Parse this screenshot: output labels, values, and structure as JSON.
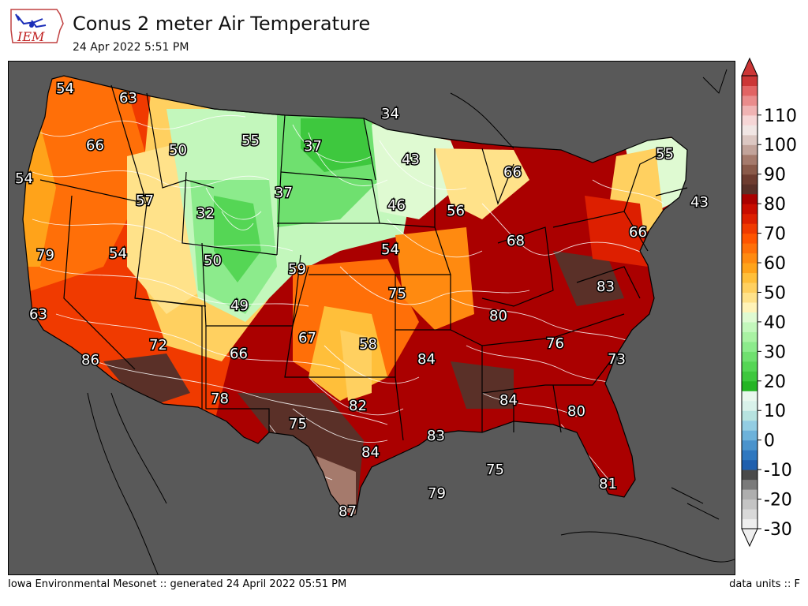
{
  "header": {
    "logo_text": "IEM",
    "title": "Conus 2 meter Air Temperature",
    "subtitle": "24 Apr 2022 5:51 PM"
  },
  "footer": {
    "left": "Iowa Environmental Mesonet :: generated 24 April 2022 05:51 PM",
    "right": "data units :: F"
  },
  "colorbar": {
    "ticks": [
      "-30",
      "-20",
      "-10",
      "0",
      "10",
      "20",
      "30",
      "40",
      "50",
      "60",
      "70",
      "80",
      "90",
      "100",
      "110"
    ],
    "colors": [
      "#efefef",
      "#d9d9d9",
      "#c4c4c4",
      "#aeaeae",
      "#7a7a7a",
      "#4a4a4a",
      "#1f5fae",
      "#2f78c0",
      "#4a93cc",
      "#6db2da",
      "#93cde3",
      "#b7e3e0",
      "#d9f2ea",
      "#e9f8ee",
      "#25b525",
      "#3ec83e",
      "#55d655",
      "#6fe06f",
      "#8ceb8c",
      "#a9f2a3",
      "#c3f7bc",
      "#dffad2",
      "#fff3b8",
      "#ffe28a",
      "#ffd060",
      "#ffbf3a",
      "#ffa31a",
      "#ff8a10",
      "#ff6f08",
      "#ff5400",
      "#f03a00",
      "#dd1f00",
      "#c80c00",
      "#aa0000",
      "#5a3028",
      "#6e3c30",
      "#8a5a4a",
      "#a57a6c",
      "#c2a39a",
      "#dcc7c2",
      "#f1e6e4",
      "#f6d6d6",
      "#f0b3b3",
      "#ea8c8c",
      "#e26464",
      "#cc3636"
    ]
  },
  "chart_data": {
    "type": "heatmap",
    "title": "Conus 2 meter Air Temperature",
    "units": "F",
    "colorbar_range": [
      -30,
      120
    ],
    "station_labels": [
      {
        "value": "54",
        "place": "NW Washington"
      },
      {
        "value": "63",
        "place": "NE Washington"
      },
      {
        "value": "34",
        "place": "N Minnesota"
      },
      {
        "value": "66",
        "place": "E Oregon"
      },
      {
        "value": "50",
        "place": "W Montana"
      },
      {
        "value": "55",
        "place": "C Montana"
      },
      {
        "value": "37",
        "place": "North Dakota"
      },
      {
        "value": "43",
        "place": "Minnesota"
      },
      {
        "value": "55",
        "place": "Maine"
      },
      {
        "value": "66",
        "place": "N Michigan"
      },
      {
        "value": "54",
        "place": "Oregon coast"
      },
      {
        "value": "57",
        "place": "Idaho"
      },
      {
        "value": "37",
        "place": "South Dakota"
      },
      {
        "value": "32",
        "place": "Wyoming"
      },
      {
        "value": "46",
        "place": "S Minnesota"
      },
      {
        "value": "56",
        "place": "Wisconsin"
      },
      {
        "value": "43",
        "place": "Massachusetts"
      },
      {
        "value": "66",
        "place": "Pennsylvania"
      },
      {
        "value": "79",
        "place": "N California"
      },
      {
        "value": "54",
        "place": "Nevada"
      },
      {
        "value": "50",
        "place": "Utah"
      },
      {
        "value": "59",
        "place": "Nebraska"
      },
      {
        "value": "54",
        "place": "Iowa"
      },
      {
        "value": "68",
        "place": "Michigan/Ohio"
      },
      {
        "value": "83",
        "place": "Virginia"
      },
      {
        "value": "63",
        "place": "C California"
      },
      {
        "value": "49",
        "place": "Colorado"
      },
      {
        "value": "75",
        "place": "Missouri"
      },
      {
        "value": "80",
        "place": "Kentucky"
      },
      {
        "value": "86",
        "place": "S California"
      },
      {
        "value": "72",
        "place": "Arizona"
      },
      {
        "value": "66",
        "place": "New Mexico"
      },
      {
        "value": "67",
        "place": "Oklahoma panhandle"
      },
      {
        "value": "58",
        "place": "Oklahoma"
      },
      {
        "value": "84",
        "place": "Arkansas"
      },
      {
        "value": "76",
        "place": "Tennessee"
      },
      {
        "value": "73",
        "place": "North Carolina"
      },
      {
        "value": "78",
        "place": "SW New Mexico"
      },
      {
        "value": "82",
        "place": "N Texas"
      },
      {
        "value": "84",
        "place": "Alabama"
      },
      {
        "value": "80",
        "place": "Georgia"
      },
      {
        "value": "75",
        "place": "W Texas"
      },
      {
        "value": "83",
        "place": "Louisiana"
      },
      {
        "value": "84",
        "place": "C Texas"
      },
      {
        "value": "75",
        "place": "Gulf of Mexico"
      },
      {
        "value": "79",
        "place": "Gulf of Mexico south"
      },
      {
        "value": "81",
        "place": "Florida"
      },
      {
        "value": "87",
        "place": "S Texas"
      }
    ]
  }
}
